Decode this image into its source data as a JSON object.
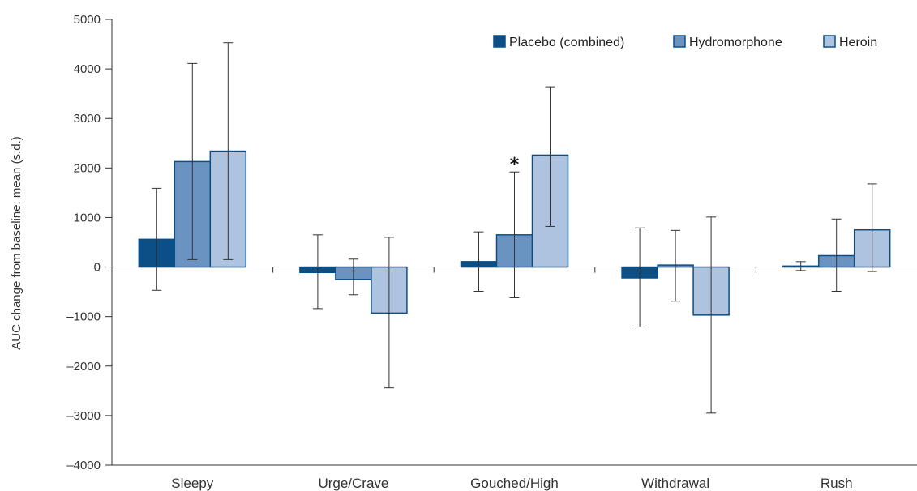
{
  "chart_data": {
    "type": "bar",
    "categories": [
      "Sleepy",
      "Urge/Crave",
      "Gouched/High",
      "Withdrawal",
      "Rush"
    ],
    "series": [
      {
        "name": "Placebo (combined)",
        "color": "#0b4f86",
        "values": [
          560,
          -110,
          110,
          -220,
          20
        ],
        "err_low": [
          -470,
          -840,
          -490,
          -1210,
          -70
        ],
        "err_high": [
          1590,
          650,
          710,
          790,
          110
        ]
      },
      {
        "name": "Hydromorphone",
        "color": "#6b93c2",
        "values": [
          2130,
          -250,
          650,
          40,
          230
        ],
        "err_low": [
          150,
          -560,
          -620,
          -690,
          -490
        ],
        "err_high": [
          4110,
          160,
          1920,
          740,
          970
        ]
      },
      {
        "name": "Heroin",
        "color": "#aec3df",
        "values": [
          2340,
          -930,
          2260,
          -970,
          750
        ],
        "err_low": [
          150,
          -2440,
          820,
          -2950,
          -90
        ],
        "err_high": [
          4530,
          600,
          3640,
          1010,
          1680
        ]
      }
    ],
    "ylabel": "AUC change from baseline: mean (s.d.)",
    "xlabel": "",
    "ylim": [
      -4000,
      5000
    ],
    "yticks": [
      5000,
      4000,
      3000,
      2000,
      1000,
      0,
      -1000,
      -2000,
      -3000,
      -4000
    ],
    "ytick_labels": [
      "5000",
      "4000",
      "3000",
      "2000",
      "1000",
      "0",
      "–1000",
      "–2000",
      "–3000",
      "–4000"
    ],
    "legend_position": "top-right",
    "grid": false,
    "error_bars": true,
    "annotations": [
      {
        "text": "*",
        "category": "Gouched/High",
        "series": "Hydromorphone"
      }
    ],
    "outline_color": "#0b4f86"
  }
}
